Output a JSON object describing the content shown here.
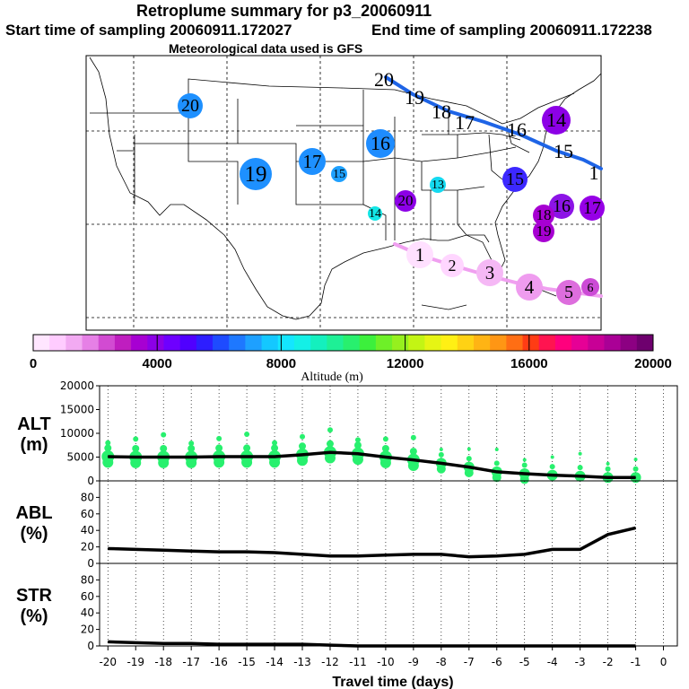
{
  "header": {
    "title": "Retroplume summary for p3_20060911",
    "start_label": "Start time of sampling 20060911.172027",
    "end_label": "End time of sampling 20060911.172238",
    "met_label": "Meteorological data used is GFS"
  },
  "colorbar": {
    "label": "Altitude (m)",
    "ticks": [
      "0",
      "4000",
      "8000",
      "12000",
      "16000",
      "20000"
    ],
    "colors": [
      "#ffe6ff",
      "#ffccff",
      "#f2aaf2",
      "#e680e6",
      "#d24bd2",
      "#bf1ebf",
      "#a700d2",
      "#8c00e6",
      "#6e00ff",
      "#5000ff",
      "#2d1eff",
      "#1e4bff",
      "#1e78ff",
      "#1ea0ff",
      "#14c8ff",
      "#14e6ff",
      "#14f0e6",
      "#14f0be",
      "#1ef096",
      "#28f06e",
      "#3cf03c",
      "#6ef028",
      "#96f01e",
      "#c3f514",
      "#e6f514",
      "#fff014",
      "#ffd214",
      "#ffb414",
      "#ff9614",
      "#ff6e14",
      "#ff3c14",
      "#ff1450",
      "#ff007d",
      "#e60096",
      "#c80096",
      "#aa0096",
      "#8c0082",
      "#6e006e"
    ]
  },
  "map": {
    "plume_labels": [
      {
        "t": "1",
        "c": "#ffe0ff"
      },
      {
        "t": "2",
        "c": "#ffd6ff"
      },
      {
        "t": "3",
        "c": "#f5b8f5"
      },
      {
        "t": "4",
        "c": "#ef9cef"
      },
      {
        "t": "5",
        "c": "#dd6edd"
      },
      {
        "t": "6",
        "c": "#cc4bd6"
      },
      {
        "t": "13",
        "c": "#14d9f0"
      },
      {
        "t": "14",
        "c": "#14e6e6"
      },
      {
        "t": "15",
        "c": "#1ea0ff"
      },
      {
        "t": "16",
        "c": "#1e8cff"
      },
      {
        "t": "17",
        "c": "#1e90ff"
      },
      {
        "t": "19",
        "c": "#1e90ff"
      },
      {
        "t": "20",
        "c": "#1e90ff"
      },
      {
        "t": "20",
        "c": "#8c00e6"
      },
      {
        "t": "15",
        "c": "#3c28ff"
      },
      {
        "t": "14",
        "c": "#8c00e6"
      },
      {
        "t": "16",
        "c": "#8c14e6"
      },
      {
        "t": "17",
        "c": "#9600e6"
      },
      {
        "t": "18",
        "c": "#a700d2"
      },
      {
        "t": "19",
        "c": "#a700d2"
      }
    ],
    "track_labels": [
      "20",
      "19",
      "18",
      "17",
      "16",
      "15",
      "1"
    ],
    "track_color": "#1e64e6",
    "pink_track_color": "#f0a0f0"
  },
  "chart_data": [
    {
      "type": "line",
      "name": "ALT",
      "ylabel": [
        "ALT",
        "(m)"
      ],
      "ylim": [
        0,
        20000
      ],
      "yticks": [
        "0",
        "5000",
        "10000",
        "15000",
        "20000"
      ],
      "x": [
        -20,
        -19,
        -18,
        -17,
        -16,
        -15,
        -14,
        -13,
        -12,
        -11,
        -10,
        -9,
        -8,
        -7,
        -6,
        -5,
        -4,
        -3,
        -2,
        -1
      ],
      "values": [
        5100,
        5000,
        5000,
        5000,
        5100,
        5100,
        5100,
        5500,
        6000,
        5700,
        5000,
        4400,
        3700,
        2900,
        1900,
        1500,
        1200,
        1000,
        700,
        700
      ],
      "scatter_color": "#28f06e"
    },
    {
      "type": "line",
      "name": "ABL",
      "ylabel": [
        "ABL",
        "(%)"
      ],
      "ylim": [
        0,
        100
      ],
      "yticks": [
        "0",
        "20",
        "40",
        "60",
        "80"
      ],
      "x": [
        -20,
        -19,
        -18,
        -17,
        -16,
        -15,
        -14,
        -13,
        -12,
        -11,
        -10,
        -9,
        -8,
        -7,
        -6,
        -5,
        -4,
        -3,
        -2,
        -1
      ],
      "values": [
        18,
        17,
        16,
        15,
        14,
        14,
        13,
        11,
        9,
        9,
        10,
        11,
        11,
        8,
        9,
        11,
        17,
        17,
        35,
        43
      ]
    },
    {
      "type": "line",
      "name": "STR",
      "ylabel": [
        "STR",
        "(%)"
      ],
      "ylim": [
        0,
        100
      ],
      "yticks": [
        "0",
        "20",
        "40",
        "60",
        "80"
      ],
      "xlabel": "Travel time (days)",
      "xticks": [
        "-20",
        "-19",
        "-18",
        "-17",
        "-16",
        "-15",
        "-14",
        "-13",
        "-12",
        "-11",
        "-10",
        "-9",
        "-8",
        "-7",
        "-6",
        "-5",
        "-4",
        "-3",
        "-2",
        "-1",
        "0"
      ],
      "x": [
        -20,
        -19,
        -18,
        -17,
        -16,
        -15,
        -14,
        -13,
        -12,
        -11,
        -10,
        -9,
        -8,
        -7,
        -6,
        -5,
        -4,
        -3,
        -2,
        -1
      ],
      "values": [
        5,
        4,
        3,
        3,
        2,
        2,
        2,
        2,
        1,
        0,
        0,
        0,
        0,
        0,
        0,
        0,
        0,
        0,
        0,
        0
      ]
    }
  ]
}
